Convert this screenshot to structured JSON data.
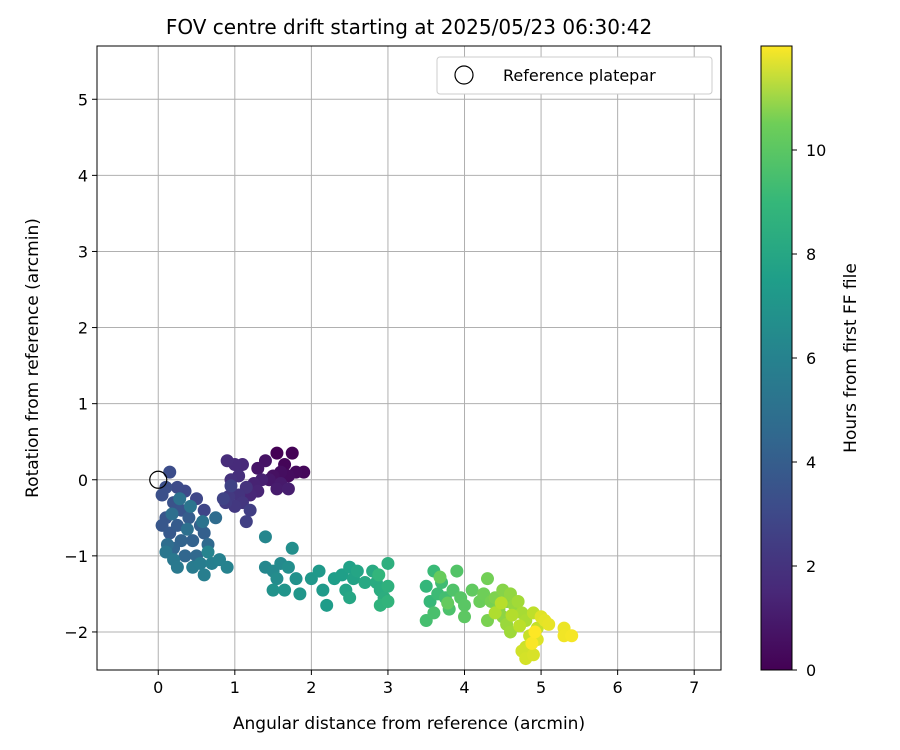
{
  "chart_data": {
    "type": "scatter",
    "title": "FOV centre drift starting at 2025/05/23 06:30:42",
    "xlabel": "Angular distance from reference (arcmin)",
    "ylabel": "Rotation from reference (arcmin)",
    "xlim": [
      -0.8,
      7.35
    ],
    "ylim": [
      -2.5,
      5.7
    ],
    "xticks": [
      0,
      1,
      2,
      3,
      4,
      5,
      6,
      7
    ],
    "yticks": [
      -2,
      -1,
      0,
      1,
      2,
      3,
      4,
      5
    ],
    "grid": true,
    "legend": {
      "placement": "top-right",
      "entries": [
        {
          "label": "Reference platepar",
          "marker": "open-circle"
        }
      ]
    },
    "reference_point": {
      "x": 0,
      "y": 0
    },
    "colorbar": {
      "label": "Hours from first FF file",
      "range": [
        0,
        12
      ],
      "ticks": [
        0,
        2,
        4,
        6,
        8,
        10
      ],
      "colormap": "viridis"
    },
    "series": [
      {
        "points": [
          [
            1.55,
            0.35
          ],
          [
            1.75,
            0.35
          ],
          [
            1.65,
            0.2
          ],
          [
            1.9,
            0.1
          ],
          [
            1.8,
            0.1
          ],
          [
            1.7,
            0.05
          ],
          [
            1.6,
            0.1
          ],
          [
            1.5,
            0.05
          ],
          [
            1.4,
            0.25
          ],
          [
            1.3,
            0.15
          ],
          [
            1.45,
            0.0
          ],
          [
            1.6,
            -0.05
          ],
          [
            1.55,
            -0.12
          ],
          [
            1.7,
            -0.12
          ],
          [
            1.35,
            0.0
          ],
          [
            1.25,
            -0.05
          ],
          [
            1.3,
            -0.15
          ],
          [
            1.2,
            -0.2
          ],
          [
            1.1,
            0.2
          ],
          [
            1.0,
            0.2
          ],
          [
            0.9,
            0.25
          ],
          [
            1.05,
            0.05
          ],
          [
            0.95,
            0.0
          ],
          [
            1.15,
            -0.1
          ],
          [
            1.05,
            -0.2
          ],
          [
            1.1,
            -0.3
          ],
          [
            1.0,
            -0.35
          ],
          [
            0.92,
            -0.22
          ],
          [
            0.88,
            -0.3
          ],
          [
            1.2,
            -0.4
          ],
          [
            1.15,
            -0.55
          ],
          [
            0.95,
            -0.08
          ],
          [
            0.85,
            -0.25
          ],
          [
            0.6,
            -0.4
          ],
          [
            0.5,
            -0.25
          ],
          [
            0.35,
            -0.15
          ],
          [
            0.25,
            -0.1
          ],
          [
            0.15,
            0.1
          ],
          [
            0.1,
            -0.1
          ],
          [
            0.05,
            -0.2
          ],
          [
            0.2,
            -0.3
          ],
          [
            0.3,
            -0.4
          ],
          [
            0.1,
            -0.5
          ],
          [
            0.05,
            -0.6
          ],
          [
            0.15,
            -0.7
          ],
          [
            0.25,
            -0.6
          ],
          [
            0.4,
            -0.5
          ],
          [
            0.55,
            -0.6
          ],
          [
            0.6,
            -0.7
          ],
          [
            0.45,
            -0.8
          ],
          [
            0.3,
            -0.8
          ],
          [
            0.2,
            -0.9
          ],
          [
            0.35,
            -1.0
          ],
          [
            0.5,
            -1.0
          ],
          [
            0.65,
            -0.85
          ],
          [
            0.75,
            -0.5
          ],
          [
            0.12,
            -0.85
          ],
          [
            0.18,
            -0.45
          ],
          [
            0.38,
            -0.65
          ],
          [
            0.28,
            -0.25
          ],
          [
            0.58,
            -0.55
          ],
          [
            0.42,
            -0.35
          ],
          [
            0.1,
            -0.95
          ],
          [
            0.2,
            -1.05
          ],
          [
            0.25,
            -1.15
          ],
          [
            0.45,
            -1.15
          ],
          [
            0.55,
            -1.1
          ],
          [
            0.6,
            -1.25
          ],
          [
            0.7,
            -1.1
          ],
          [
            0.8,
            -1.05
          ],
          [
            0.9,
            -1.15
          ],
          [
            0.65,
            -0.95
          ],
          [
            1.4,
            -0.75
          ],
          [
            1.4,
            -1.15
          ],
          [
            1.5,
            -1.2
          ],
          [
            1.6,
            -1.1
          ],
          [
            1.55,
            -1.3
          ],
          [
            1.7,
            -1.15
          ],
          [
            1.75,
            -0.9
          ],
          [
            1.8,
            -1.3
          ],
          [
            1.5,
            -1.45
          ],
          [
            1.65,
            -1.45
          ],
          [
            1.85,
            -1.5
          ],
          [
            2.0,
            -1.3
          ],
          [
            2.1,
            -1.2
          ],
          [
            2.15,
            -1.45
          ],
          [
            2.2,
            -1.65
          ],
          [
            2.3,
            -1.3
          ],
          [
            2.4,
            -1.25
          ],
          [
            2.5,
            -1.15
          ],
          [
            2.55,
            -1.3
          ],
          [
            2.45,
            -1.45
          ],
          [
            2.6,
            -1.2
          ],
          [
            2.5,
            -1.55
          ],
          [
            2.7,
            -1.35
          ],
          [
            2.8,
            -1.2
          ],
          [
            2.85,
            -1.35
          ],
          [
            2.9,
            -1.45
          ],
          [
            2.95,
            -1.55
          ],
          [
            3.0,
            -1.1
          ],
          [
            3.0,
            -1.4
          ],
          [
            2.9,
            -1.65
          ],
          [
            3.0,
            -1.6
          ],
          [
            2.88,
            -1.25
          ],
          [
            3.5,
            -1.4
          ],
          [
            3.55,
            -1.6
          ],
          [
            3.6,
            -1.2
          ],
          [
            3.65,
            -1.5
          ],
          [
            3.7,
            -1.35
          ],
          [
            3.75,
            -1.55
          ],
          [
            3.5,
            -1.85
          ],
          [
            3.6,
            -1.75
          ],
          [
            3.8,
            -1.7
          ],
          [
            3.85,
            -1.45
          ],
          [
            3.9,
            -1.2
          ],
          [
            3.95,
            -1.55
          ],
          [
            4.0,
            -1.65
          ],
          [
            4.0,
            -1.8
          ],
          [
            4.1,
            -1.45
          ],
          [
            3.78,
            -1.62
          ],
          [
            3.68,
            -1.28
          ],
          [
            4.2,
            -1.6
          ],
          [
            4.25,
            -1.5
          ],
          [
            4.3,
            -1.3
          ],
          [
            4.35,
            -1.6
          ],
          [
            4.3,
            -1.85
          ],
          [
            4.4,
            -1.55
          ],
          [
            4.45,
            -1.7
          ],
          [
            4.5,
            -1.45
          ],
          [
            4.55,
            -1.6
          ],
          [
            4.5,
            -1.8
          ],
          [
            4.6,
            -1.5
          ],
          [
            4.65,
            -1.65
          ],
          [
            4.55,
            -1.9
          ],
          [
            4.6,
            -2.0
          ],
          [
            4.7,
            -1.6
          ],
          [
            4.75,
            -1.75
          ],
          [
            4.8,
            -1.85
          ],
          [
            4.4,
            -1.75
          ],
          [
            4.62,
            -1.78
          ],
          [
            4.48,
            -1.62
          ],
          [
            4.72,
            -1.92
          ],
          [
            4.9,
            -1.75
          ],
          [
            4.95,
            -1.95
          ],
          [
            4.85,
            -2.05
          ],
          [
            4.8,
            -2.2
          ],
          [
            4.75,
            -2.25
          ],
          [
            4.8,
            -2.35
          ],
          [
            4.9,
            -2.3
          ],
          [
            4.95,
            -2.1
          ],
          [
            5.0,
            -1.8
          ],
          [
            5.05,
            -1.85
          ],
          [
            5.1,
            -1.9
          ],
          [
            5.3,
            -1.95
          ],
          [
            5.3,
            -2.05
          ],
          [
            5.4,
            -2.05
          ],
          [
            4.88,
            -2.15
          ],
          [
            4.92,
            -2.0
          ]
        ]
      }
    ]
  }
}
